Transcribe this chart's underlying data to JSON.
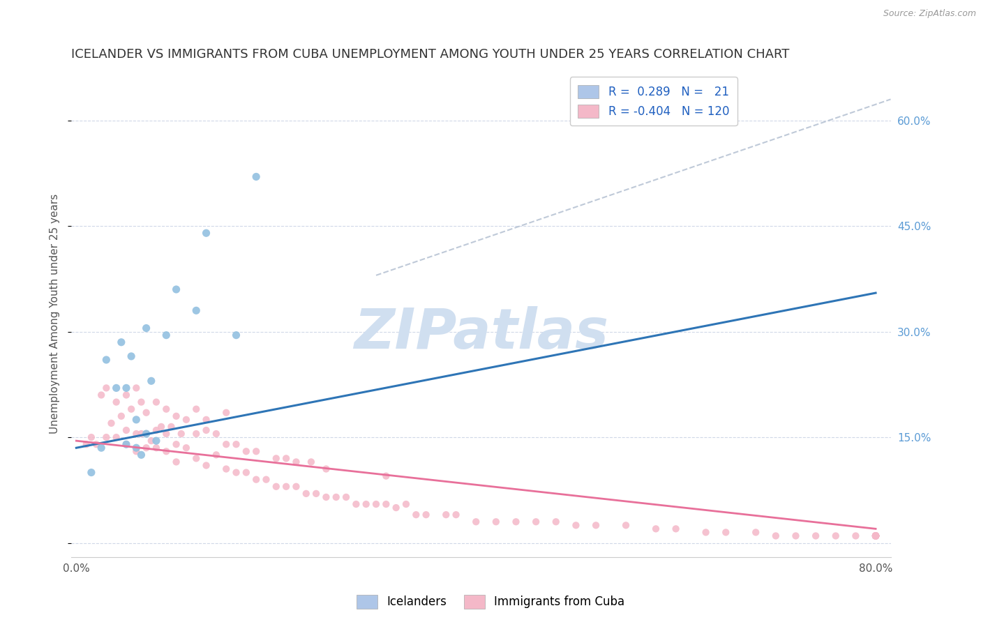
{
  "title": "ICELANDER VS IMMIGRANTS FROM CUBA UNEMPLOYMENT AMONG YOUTH UNDER 25 YEARS CORRELATION CHART",
  "source": "Source: ZipAtlas.com",
  "ylabel": "Unemployment Among Youth under 25 years",
  "legend_labels": [
    "Icelanders",
    "Immigrants from Cuba"
  ],
  "r_icelander": 0.289,
  "n_icelander": 21,
  "r_cuba": -0.404,
  "n_cuba": 120,
  "xlim": [
    -0.005,
    0.815
  ],
  "ylim": [
    -0.02,
    0.67
  ],
  "yticks": [
    0.0,
    0.15,
    0.3,
    0.45,
    0.6
  ],
  "ytick_labels": [
    "",
    "15.0%",
    "30.0%",
    "45.0%",
    "60.0%"
  ],
  "xtick_vals": [
    0.0,
    0.8
  ],
  "xtick_labels": [
    "0.0%",
    "80.0%"
  ],
  "blue_scatter_color": "#92c0e0",
  "pink_scatter_color": "#f4b8c8",
  "blue_line_color": "#2e75b6",
  "pink_line_color": "#e8709a",
  "dashed_line_color": "#b8c4d4",
  "blue_patch_color": "#aec6e8",
  "pink_patch_color": "#f4b8c8",
  "legend_text_color": "#2060c0",
  "background_color": "#ffffff",
  "grid_color": "#d0d8e8",
  "title_color": "#333333",
  "ylabel_color": "#555555",
  "tick_color": "#5b9bd5",
  "title_fontsize": 13,
  "axis_fontsize": 11,
  "tick_fontsize": 11,
  "legend_fontsize": 12,
  "icelander_x": [
    0.015,
    0.025,
    0.03,
    0.04,
    0.045,
    0.05,
    0.05,
    0.055,
    0.06,
    0.06,
    0.065,
    0.07,
    0.07,
    0.075,
    0.08,
    0.09,
    0.1,
    0.12,
    0.13,
    0.16,
    0.18
  ],
  "icelander_y": [
    0.1,
    0.135,
    0.26,
    0.22,
    0.285,
    0.14,
    0.22,
    0.265,
    0.135,
    0.175,
    0.125,
    0.155,
    0.305,
    0.23,
    0.145,
    0.295,
    0.36,
    0.33,
    0.44,
    0.295,
    0.52
  ],
  "cuba_x": [
    0.01,
    0.015,
    0.02,
    0.025,
    0.03,
    0.03,
    0.035,
    0.04,
    0.04,
    0.045,
    0.05,
    0.05,
    0.05,
    0.055,
    0.06,
    0.06,
    0.06,
    0.065,
    0.065,
    0.07,
    0.07,
    0.07,
    0.075,
    0.08,
    0.08,
    0.08,
    0.085,
    0.09,
    0.09,
    0.09,
    0.095,
    0.1,
    0.1,
    0.1,
    0.105,
    0.11,
    0.11,
    0.12,
    0.12,
    0.12,
    0.13,
    0.13,
    0.13,
    0.14,
    0.14,
    0.15,
    0.15,
    0.15,
    0.16,
    0.16,
    0.17,
    0.17,
    0.18,
    0.18,
    0.19,
    0.2,
    0.2,
    0.21,
    0.21,
    0.22,
    0.22,
    0.23,
    0.235,
    0.24,
    0.25,
    0.25,
    0.26,
    0.27,
    0.28,
    0.29,
    0.3,
    0.31,
    0.31,
    0.32,
    0.33,
    0.34,
    0.35,
    0.37,
    0.38,
    0.4,
    0.42,
    0.44,
    0.46,
    0.48,
    0.5,
    0.52,
    0.55,
    0.58,
    0.6,
    0.63,
    0.65,
    0.68,
    0.7,
    0.72,
    0.74,
    0.76,
    0.78,
    0.8,
    0.8,
    0.8,
    0.8,
    0.8,
    0.8,
    0.8,
    0.8,
    0.8,
    0.8,
    0.8,
    0.8,
    0.8,
    0.8,
    0.8,
    0.8,
    0.8,
    0.8,
    0.8,
    0.8,
    0.8,
    0.8,
    0.8
  ],
  "cuba_y": [
    0.14,
    0.15,
    0.14,
    0.21,
    0.15,
    0.22,
    0.17,
    0.15,
    0.2,
    0.18,
    0.14,
    0.16,
    0.21,
    0.19,
    0.13,
    0.155,
    0.22,
    0.155,
    0.2,
    0.135,
    0.155,
    0.185,
    0.145,
    0.135,
    0.16,
    0.2,
    0.165,
    0.13,
    0.155,
    0.19,
    0.165,
    0.115,
    0.14,
    0.18,
    0.155,
    0.135,
    0.175,
    0.12,
    0.155,
    0.19,
    0.11,
    0.16,
    0.175,
    0.125,
    0.155,
    0.105,
    0.14,
    0.185,
    0.1,
    0.14,
    0.1,
    0.13,
    0.09,
    0.13,
    0.09,
    0.08,
    0.12,
    0.08,
    0.12,
    0.08,
    0.115,
    0.07,
    0.115,
    0.07,
    0.065,
    0.105,
    0.065,
    0.065,
    0.055,
    0.055,
    0.055,
    0.055,
    0.095,
    0.05,
    0.055,
    0.04,
    0.04,
    0.04,
    0.04,
    0.03,
    0.03,
    0.03,
    0.03,
    0.03,
    0.025,
    0.025,
    0.025,
    0.02,
    0.02,
    0.015,
    0.015,
    0.015,
    0.01,
    0.01,
    0.01,
    0.01,
    0.01,
    0.01,
    0.01,
    0.01,
    0.01,
    0.01,
    0.01,
    0.01,
    0.01,
    0.01,
    0.01,
    0.01,
    0.01,
    0.01,
    0.01,
    0.01,
    0.01,
    0.01,
    0.01,
    0.01,
    0.01,
    0.01,
    0.01,
    0.01
  ],
  "blue_line_x0": 0.0,
  "blue_line_x1": 0.8,
  "blue_line_y0": 0.135,
  "blue_line_y1": 0.355,
  "pink_line_x0": 0.0,
  "pink_line_x1": 0.8,
  "pink_line_y0": 0.145,
  "pink_line_y1": 0.02,
  "dash_line_x0": 0.3,
  "dash_line_x1": 0.815,
  "dash_line_y0": 0.38,
  "dash_line_y1": 0.63,
  "watermark_text": "ZIPatlas",
  "watermark_color": "#d0dff0"
}
